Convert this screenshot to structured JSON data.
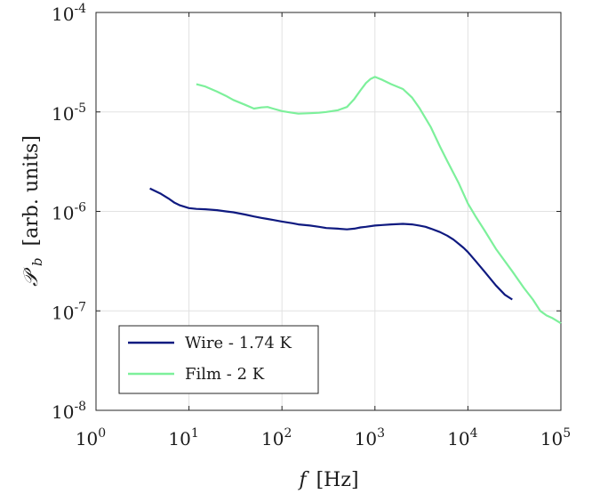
{
  "chart_data": {
    "type": "line",
    "xscale": "log",
    "yscale": "log",
    "xlim": [
      1,
      100000
    ],
    "ylim": [
      1e-08,
      0.0001
    ],
    "grid": true,
    "xlabel_symbol": "f",
    "xlabel_unit": "[Hz]",
    "ylabel_symbol": "𝒫",
    "ylabel_sub": "b",
    "ylabel_unit": "[arb.  units]",
    "x_ticks": [
      {
        "mant": "10",
        "exp": "0"
      },
      {
        "mant": "10",
        "exp": "1"
      },
      {
        "mant": "10",
        "exp": "2"
      },
      {
        "mant": "10",
        "exp": "3"
      },
      {
        "mant": "10",
        "exp": "4"
      },
      {
        "mant": "10",
        "exp": "5"
      }
    ],
    "y_ticks": [
      {
        "mant": "10",
        "exp": "-8"
      },
      {
        "mant": "10",
        "exp": "-7"
      },
      {
        "mant": "10",
        "exp": "-6"
      },
      {
        "mant": "10",
        "exp": "-5"
      },
      {
        "mant": "10",
        "exp": "-4"
      }
    ],
    "legend_position": "bottom-left",
    "series": [
      {
        "name": "Wire - 1.74 K",
        "color": "#0f1a80",
        "x": [
          3.8,
          5,
          6,
          7,
          8,
          10,
          12,
          15,
          20,
          25,
          30,
          40,
          50,
          60,
          70,
          80,
          100,
          130,
          150,
          200,
          250,
          300,
          400,
          500,
          600,
          700,
          800,
          1000,
          1200,
          1500,
          2000,
          2500,
          3000,
          3500,
          4000,
          5000,
          6000,
          7000,
          8000,
          9000,
          10000,
          12000,
          15000,
          20000,
          25000,
          30000
        ],
        "y": [
          1.7e-06,
          1.5e-06,
          1.35e-06,
          1.22e-06,
          1.15e-06,
          1.08e-06,
          1.06e-06,
          1.05e-06,
          1.03e-06,
          1e-06,
          9.8e-07,
          9.3e-07,
          8.9e-07,
          8.6e-07,
          8.4e-07,
          8.2e-07,
          7.9e-07,
          7.6e-07,
          7.4e-07,
          7.2e-07,
          7e-07,
          6.8e-07,
          6.7e-07,
          6.6e-07,
          6.7e-07,
          6.9e-07,
          7e-07,
          7.2e-07,
          7.3e-07,
          7.4e-07,
          7.5e-07,
          7.4e-07,
          7.2e-07,
          7e-07,
          6.7e-07,
          6.2e-07,
          5.7e-07,
          5.2e-07,
          4.7e-07,
          4.3e-07,
          3.9e-07,
          3.2e-07,
          2.5e-07,
          1.8e-07,
          1.45e-07,
          1.3e-07
        ]
      },
      {
        "name": "Film  - 2 K",
        "color": "#7df09b",
        "x": [
          12,
          15,
          20,
          25,
          30,
          40,
          50,
          60,
          70,
          80,
          100,
          120,
          150,
          200,
          250,
          300,
          400,
          500,
          600,
          700,
          800,
          900,
          1000,
          1200,
          1500,
          2000,
          2500,
          3000,
          4000,
          5000,
          6000,
          8000,
          10000,
          12000,
          15000,
          20000,
          30000,
          40000,
          50000,
          60000,
          70000,
          80000,
          100000
        ],
        "y": [
          1.9e-05,
          1.8e-05,
          1.6e-05,
          1.45e-05,
          1.32e-05,
          1.18e-05,
          1.08e-05,
          1.11e-05,
          1.12e-05,
          1.08e-05,
          1.02e-05,
          9.9e-06,
          9.6e-06,
          9.7e-06,
          9.8e-06,
          1e-05,
          1.04e-05,
          1.12e-05,
          1.35e-05,
          1.65e-05,
          1.95e-05,
          2.15e-05,
          2.25e-05,
          2.1e-05,
          1.9e-05,
          1.7e-05,
          1.4e-05,
          1.1e-05,
          7e-06,
          4.5e-06,
          3.2e-06,
          1.9e-06,
          1.2e-06,
          9e-07,
          6.5e-07,
          4.2e-07,
          2.5e-07,
          1.7e-07,
          1.3e-07,
          1e-07,
          9e-08,
          8.5e-08,
          7.5e-08
        ]
      }
    ]
  }
}
